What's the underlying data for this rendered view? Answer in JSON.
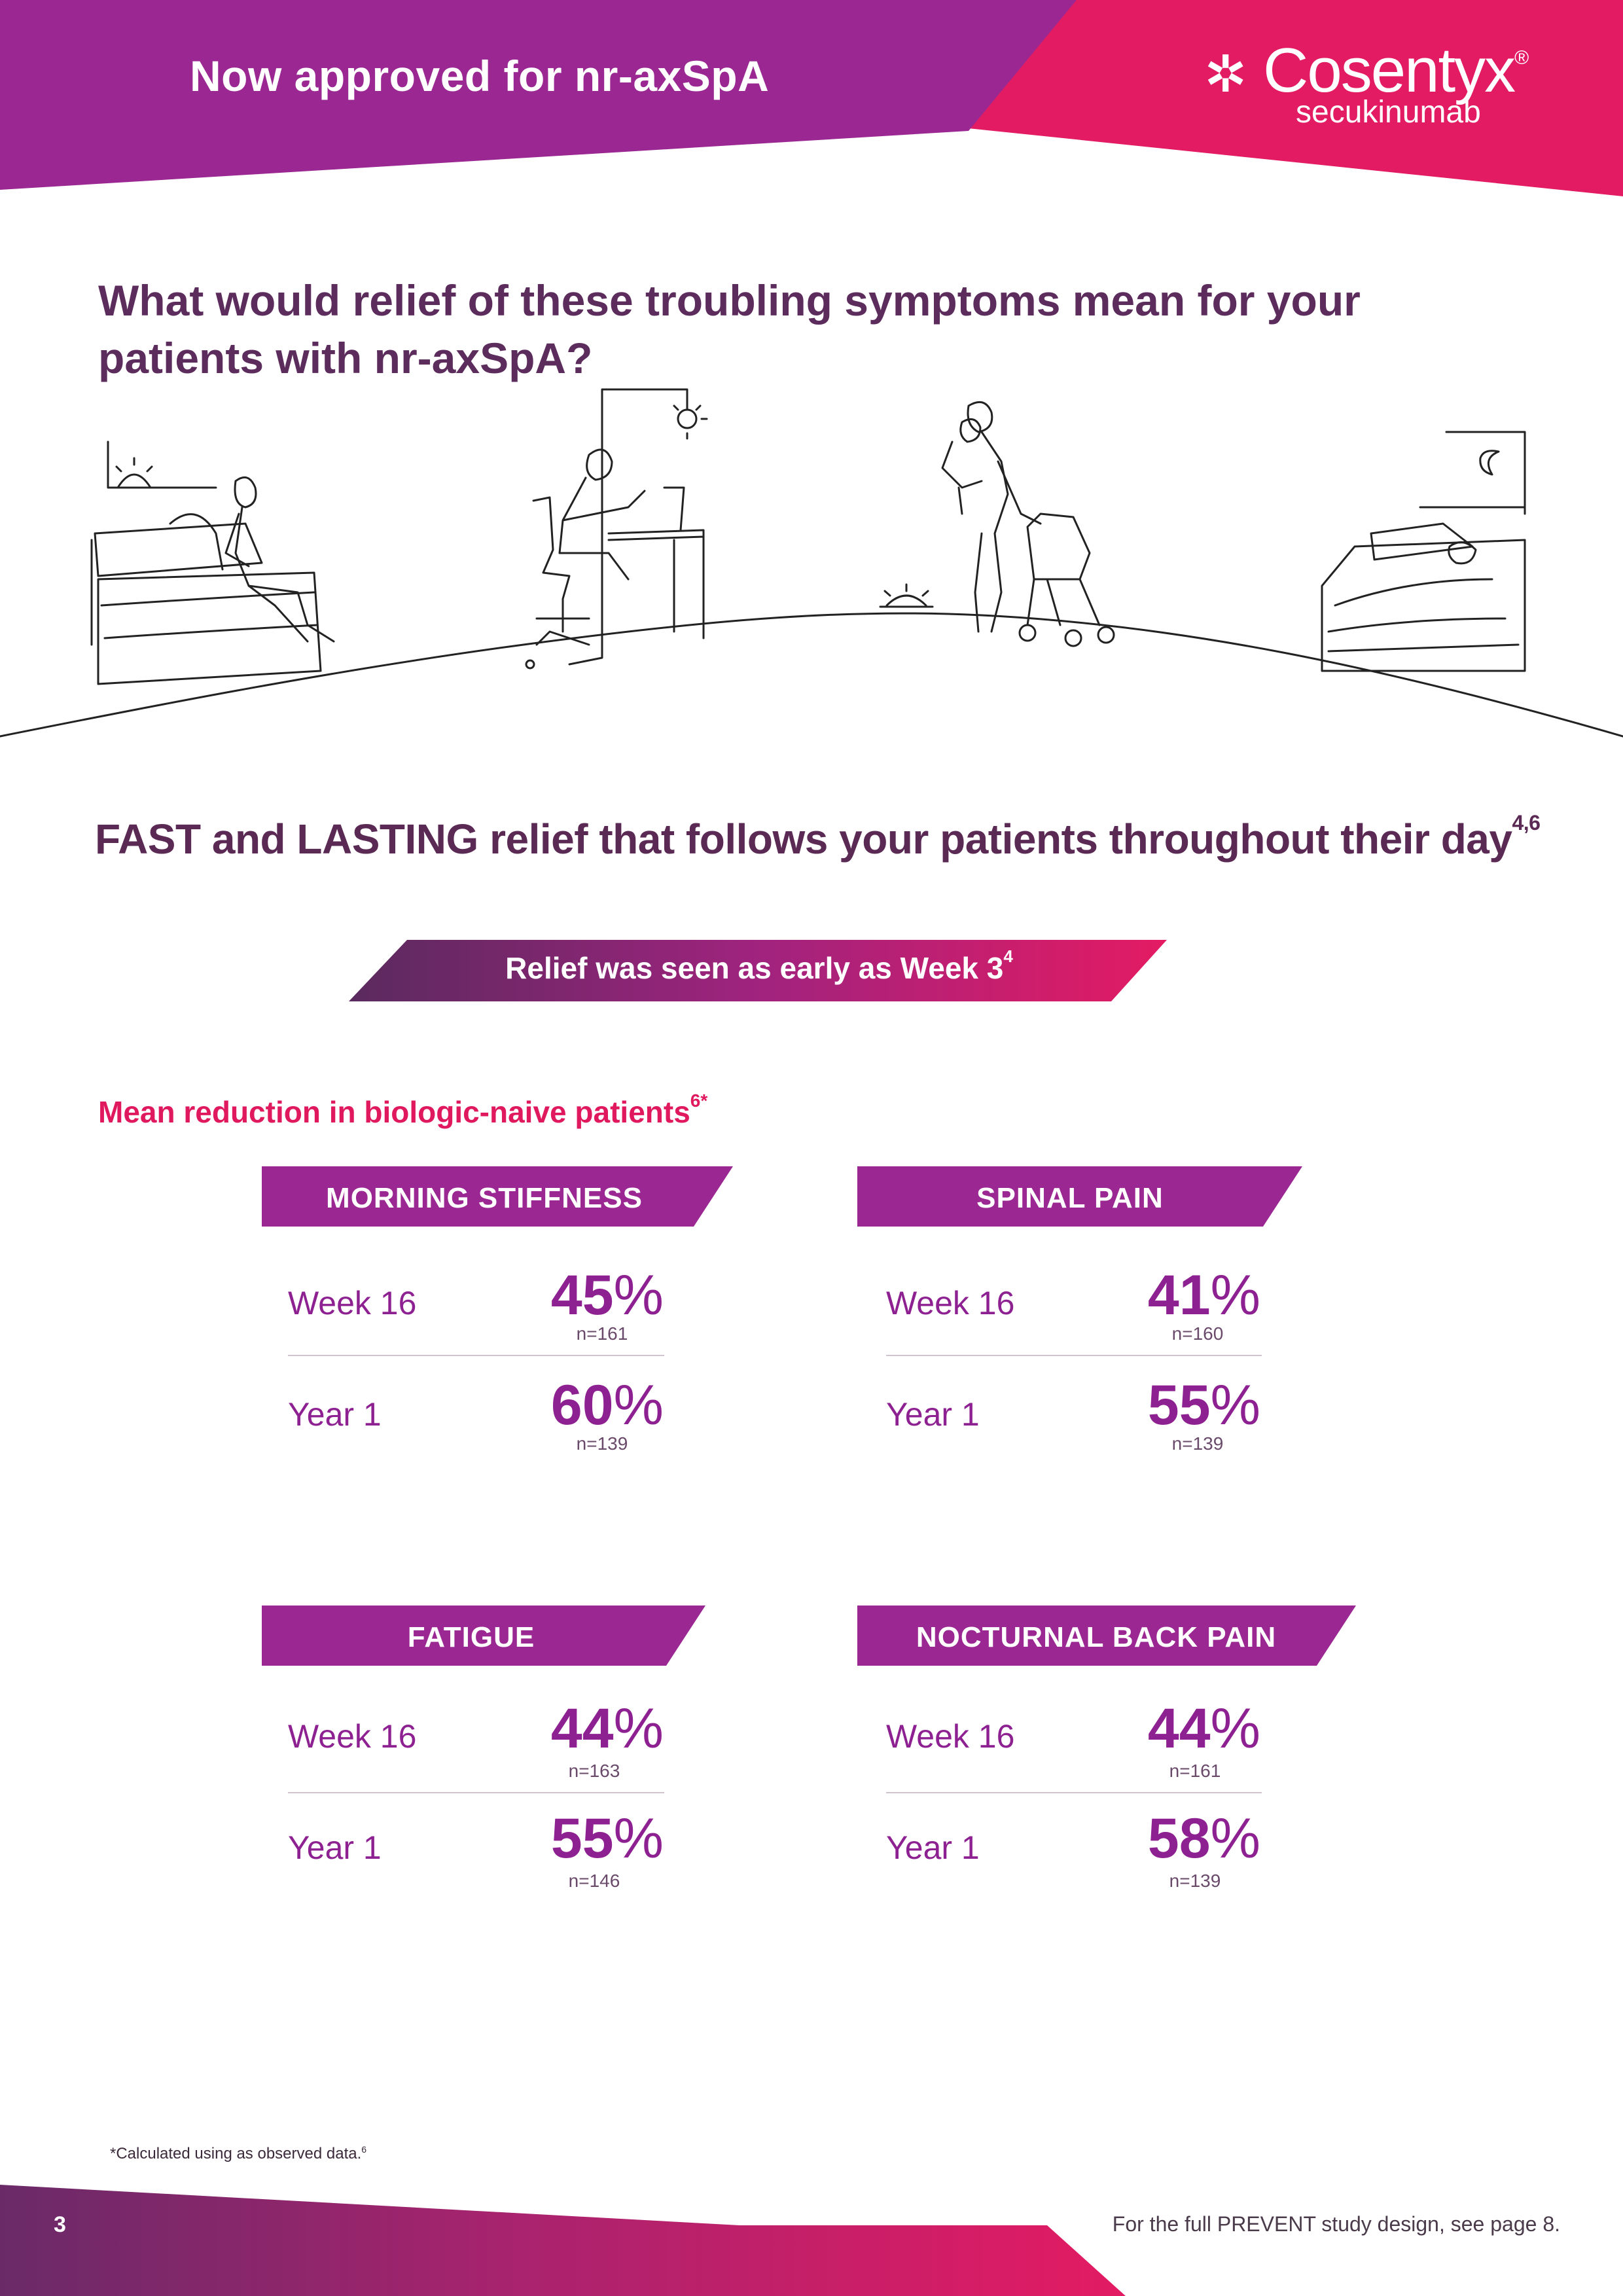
{
  "header": {
    "title": "Now approved for nr-axSpA",
    "logo": {
      "brand": "Cosentyx",
      "registered": "®",
      "generic": "secukinumab"
    },
    "colors": {
      "purple": "#9b2892",
      "pink": "#e0195f"
    }
  },
  "question": "What would relief of these troubling symptoms mean for your patients with nr-axSpA?",
  "illustration": {
    "icon": "patients-daily-life-line-illustration"
  },
  "headline": {
    "text": "FAST and LASTING relief that follows your patients throughout their day",
    "ref": "4,6"
  },
  "banner": {
    "text": "Relief was seen as early as Week 3",
    "ref": "4"
  },
  "subheading": {
    "text": "Mean reduction in biologic-naive patients",
    "ref": "6*"
  },
  "cards": [
    {
      "title": "MORNING STIFFNESS",
      "rows": [
        {
          "label": "Week 16",
          "value": "45",
          "unit": "%",
          "n": "n=161"
        },
        {
          "label": "Year 1",
          "value": "60",
          "unit": "%",
          "n": "n=139"
        }
      ]
    },
    {
      "title": "SPINAL PAIN",
      "rows": [
        {
          "label": "Week 16",
          "value": "41",
          "unit": "%",
          "n": "n=160"
        },
        {
          "label": "Year 1",
          "value": "55",
          "unit": "%",
          "n": "n=139"
        }
      ]
    },
    {
      "title": "FATIGUE",
      "rows": [
        {
          "label": "Week 16",
          "value": "44",
          "unit": "%",
          "n": "n=163"
        },
        {
          "label": "Year 1",
          "value": "55",
          "unit": "%",
          "n": "n=146"
        }
      ]
    },
    {
      "title": "NOCTURNAL BACK PAIN",
      "rows": [
        {
          "label": "Week 16",
          "value": "44",
          "unit": "%",
          "n": "n=161"
        },
        {
          "label": "Year 1",
          "value": "58",
          "unit": "%",
          "n": "n=139"
        }
      ]
    }
  ],
  "footnote": {
    "text": "*Calculated using as observed data.",
    "ref": "6"
  },
  "footer": {
    "page_number": "3",
    "note": "For the full PREVENT study design, see page 8."
  }
}
